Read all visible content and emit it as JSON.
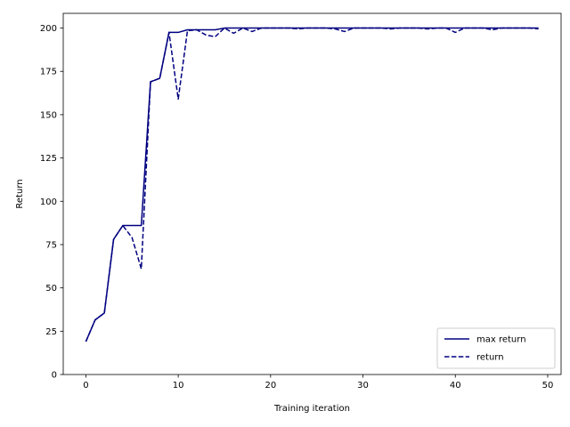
{
  "chart_data": {
    "type": "line",
    "title": "",
    "xlabel": "Training iteration",
    "ylabel": "Return",
    "xlim": [
      -2.45,
      51.45
    ],
    "ylim": [
      0,
      208.5
    ],
    "xticks": [
      0,
      10,
      20,
      30,
      40,
      50
    ],
    "yticks": [
      0,
      25,
      50,
      75,
      100,
      125,
      150,
      175,
      200
    ],
    "grid": false,
    "legend_position": "bottom-right",
    "x": [
      0,
      1,
      2,
      3,
      4,
      5,
      6,
      7,
      8,
      9,
      10,
      11,
      12,
      13,
      14,
      15,
      16,
      17,
      18,
      19,
      20,
      21,
      22,
      23,
      24,
      25,
      26,
      27,
      28,
      29,
      30,
      31,
      32,
      33,
      34,
      35,
      36,
      37,
      38,
      39,
      40,
      41,
      42,
      43,
      44,
      45,
      46,
      47,
      48,
      49
    ],
    "series": [
      {
        "name": "max return",
        "color": "#000080",
        "style": "solid",
        "values": [
          19,
          31.5,
          35.5,
          78,
          86,
          86,
          86,
          169,
          171,
          197.5,
          197.5,
          199,
          199,
          199,
          199,
          200,
          200,
          200,
          200,
          200,
          200,
          200,
          200,
          200,
          200,
          200,
          200,
          200,
          200,
          200,
          200,
          200,
          200,
          200,
          200,
          200,
          200,
          200,
          200,
          200,
          200,
          200,
          200,
          200,
          200,
          200,
          200,
          200,
          200,
          200
        ]
      },
      {
        "name": "return",
        "color": "#000080",
        "style": "dashed",
        "values": [
          19,
          31.5,
          35.5,
          78,
          86,
          79,
          61,
          169,
          171,
          197.5,
          159,
          198.5,
          199,
          196,
          195,
          200,
          197,
          200,
          198,
          200,
          200,
          200,
          200,
          199.5,
          200,
          200,
          200,
          199.5,
          198,
          200,
          200,
          200,
          200,
          199.5,
          200,
          200,
          200,
          199.5,
          200,
          200,
          197.5,
          200,
          200,
          200,
          199,
          200,
          200,
          200,
          200,
          199.5
        ]
      }
    ]
  }
}
